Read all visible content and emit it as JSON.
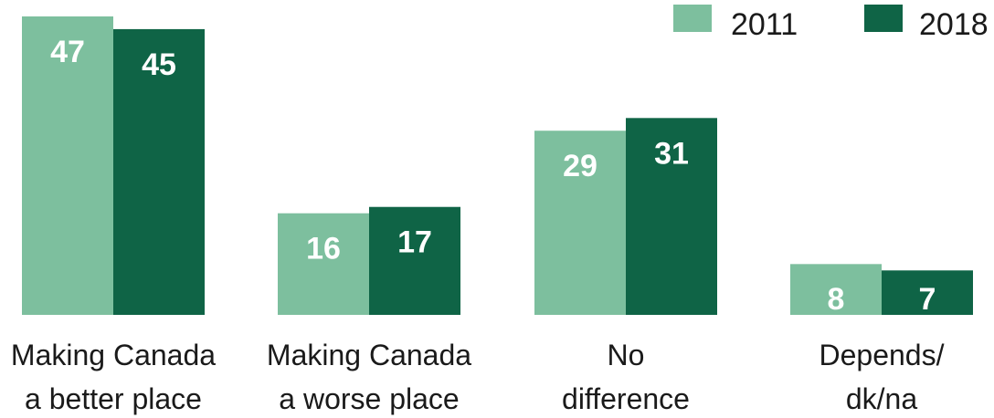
{
  "chart_data": {
    "type": "bar",
    "categories": [
      [
        "Making Canada",
        "a better place"
      ],
      [
        "Making Canada",
        "a worse place"
      ],
      [
        "No",
        "difference"
      ],
      [
        "Depends/",
        "dk/na"
      ]
    ],
    "series": [
      {
        "name": "2011",
        "values": [
          47,
          16,
          29,
          8
        ],
        "color": "#7dbf9e"
      },
      {
        "name": "2018",
        "values": [
          45,
          17,
          31,
          7
        ],
        "color": "#0f6446"
      }
    ],
    "ylim": [
      0,
      47
    ],
    "grid": false,
    "legend_position": "top-right",
    "data_labels": true
  }
}
